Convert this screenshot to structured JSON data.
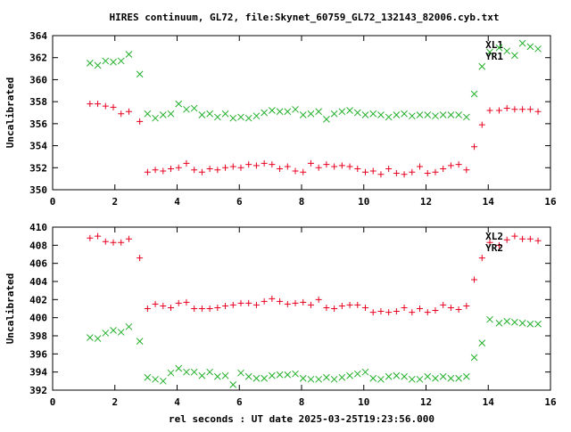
{
  "title": "HIRES continuum, GL72, file:Skynet_60759_GL72_132143_82006.cyb.txt",
  "xlabel": "rel seconds : UT date 2025-03-25T19:23:56.000",
  "colors": {
    "red": "#e8001f",
    "green": "#22b02a",
    "frame": "#000000"
  },
  "chart_data": [
    {
      "type": "scatter",
      "ylabel": "Uncalibrated",
      "xlim": [
        0,
        16
      ],
      "ylim": [
        350,
        364
      ],
      "xticks": [
        "0",
        "2",
        "4",
        "6",
        "8",
        "10",
        "12",
        "14",
        "16"
      ],
      "yticks": [
        "350",
        "352",
        "354",
        "356",
        "358",
        "360",
        "362",
        "364"
      ],
      "legend_position": "top-right",
      "series": [
        {
          "name": "XL1",
          "marker": "plus",
          "color": "#e8001f",
          "x": [
            1.2,
            1.45,
            1.7,
            1.95,
            2.2,
            2.45,
            2.8,
            3.05,
            3.3,
            3.55,
            3.8,
            4.05,
            4.3,
            4.55,
            4.8,
            5.05,
            5.3,
            5.55,
            5.8,
            6.05,
            6.3,
            6.55,
            6.8,
            7.05,
            7.3,
            7.55,
            7.8,
            8.05,
            8.3,
            8.55,
            8.8,
            9.05,
            9.3,
            9.55,
            9.8,
            10.05,
            10.3,
            10.55,
            10.8,
            11.05,
            11.3,
            11.55,
            11.8,
            12.05,
            12.3,
            12.55,
            12.8,
            13.05,
            13.3,
            13.55,
            13.8,
            14.05,
            14.35,
            14.6,
            14.85,
            15.1,
            15.35,
            15.6
          ],
          "y": [
            357.8,
            357.8,
            357.6,
            357.5,
            356.9,
            357.1,
            356.2,
            351.6,
            351.8,
            351.7,
            351.9,
            352.0,
            352.4,
            351.8,
            351.6,
            351.9,
            351.8,
            352.0,
            352.1,
            352.0,
            352.3,
            352.2,
            352.4,
            352.3,
            351.9,
            352.1,
            351.7,
            351.6,
            352.4,
            352.0,
            352.3,
            352.1,
            352.2,
            352.1,
            351.9,
            351.6,
            351.7,
            351.4,
            351.9,
            351.5,
            351.4,
            351.6,
            352.1,
            351.5,
            351.6,
            351.9,
            352.2,
            352.3,
            351.8,
            353.9,
            355.9,
            357.2,
            357.2,
            357.4,
            357.3,
            357.3,
            357.3,
            357.1
          ]
        },
        {
          "name": "YR1",
          "marker": "cross",
          "color": "#22b02a",
          "x": [
            1.2,
            1.45,
            1.7,
            1.95,
            2.2,
            2.45,
            2.8,
            3.05,
            3.3,
            3.55,
            3.8,
            4.05,
            4.3,
            4.55,
            4.8,
            5.05,
            5.3,
            5.55,
            5.8,
            6.05,
            6.3,
            6.55,
            6.8,
            7.05,
            7.3,
            7.55,
            7.8,
            8.05,
            8.3,
            8.55,
            8.8,
            9.05,
            9.3,
            9.55,
            9.8,
            10.05,
            10.3,
            10.55,
            10.8,
            11.05,
            11.3,
            11.55,
            11.8,
            12.05,
            12.3,
            12.55,
            12.8,
            13.05,
            13.3,
            13.55,
            13.8,
            14.05,
            14.35,
            14.6,
            14.85,
            15.1,
            15.35,
            15.6
          ],
          "y": [
            361.5,
            361.3,
            361.7,
            361.6,
            361.7,
            362.3,
            360.5,
            356.9,
            356.5,
            356.8,
            356.9,
            357.8,
            357.3,
            357.4,
            356.8,
            356.9,
            356.6,
            356.9,
            356.5,
            356.6,
            356.5,
            356.7,
            357.0,
            357.2,
            357.1,
            357.1,
            357.3,
            356.8,
            356.9,
            357.1,
            356.4,
            356.9,
            357.1,
            357.2,
            357.0,
            356.8,
            356.9,
            356.8,
            356.6,
            356.8,
            356.9,
            356.7,
            356.8,
            356.8,
            356.7,
            356.8,
            356.8,
            356.8,
            356.6,
            358.7,
            361.2,
            362.5,
            362.9,
            362.6,
            362.2,
            363.3,
            363.0,
            362.8
          ]
        }
      ]
    },
    {
      "type": "scatter",
      "ylabel": "Uncalibrated",
      "xlim": [
        0,
        16
      ],
      "ylim": [
        392,
        410
      ],
      "xticks": [
        "0",
        "2",
        "4",
        "6",
        "8",
        "10",
        "12",
        "14",
        "16"
      ],
      "yticks": [
        "392",
        "394",
        "396",
        "398",
        "400",
        "402",
        "404",
        "406",
        "408",
        "410"
      ],
      "legend_position": "top-right",
      "series": [
        {
          "name": "XL2",
          "marker": "plus",
          "color": "#e8001f",
          "x": [
            1.2,
            1.45,
            1.7,
            1.95,
            2.2,
            2.45,
            2.8,
            3.05,
            3.3,
            3.55,
            3.8,
            4.05,
            4.3,
            4.55,
            4.8,
            5.05,
            5.3,
            5.55,
            5.8,
            6.05,
            6.3,
            6.55,
            6.8,
            7.05,
            7.3,
            7.55,
            7.8,
            8.05,
            8.3,
            8.55,
            8.8,
            9.05,
            9.3,
            9.55,
            9.8,
            10.05,
            10.3,
            10.55,
            10.8,
            11.05,
            11.3,
            11.55,
            11.8,
            12.05,
            12.3,
            12.55,
            12.8,
            13.05,
            13.3,
            13.55,
            13.8,
            14.05,
            14.35,
            14.6,
            14.85,
            15.1,
            15.35,
            15.6
          ],
          "y": [
            408.8,
            409.0,
            408.4,
            408.3,
            408.3,
            408.7,
            406.6,
            401.0,
            401.5,
            401.3,
            401.1,
            401.6,
            401.7,
            401.0,
            401.0,
            401.0,
            401.1,
            401.3,
            401.4,
            401.6,
            401.6,
            401.4,
            401.8,
            402.1,
            401.8,
            401.5,
            401.6,
            401.7,
            401.4,
            402.0,
            401.1,
            401.0,
            401.3,
            401.4,
            401.4,
            401.1,
            400.6,
            400.7,
            400.6,
            400.7,
            401.1,
            400.6,
            401.0,
            400.6,
            400.8,
            401.4,
            401.1,
            400.9,
            401.3,
            404.2,
            406.6,
            408.3,
            408.0,
            408.6,
            409.0,
            408.7,
            408.7,
            408.5
          ]
        },
        {
          "name": "YR2",
          "marker": "cross",
          "color": "#22b02a",
          "x": [
            1.2,
            1.45,
            1.7,
            1.95,
            2.2,
            2.45,
            2.8,
            3.05,
            3.3,
            3.55,
            3.8,
            4.05,
            4.3,
            4.55,
            4.8,
            5.05,
            5.3,
            5.55,
            5.8,
            6.05,
            6.3,
            6.55,
            6.8,
            7.05,
            7.3,
            7.55,
            7.8,
            8.05,
            8.3,
            8.55,
            8.8,
            9.05,
            9.3,
            9.55,
            9.8,
            10.05,
            10.3,
            10.55,
            10.8,
            11.05,
            11.3,
            11.55,
            11.8,
            12.05,
            12.3,
            12.55,
            12.8,
            13.05,
            13.3,
            13.55,
            13.8,
            14.05,
            14.35,
            14.6,
            14.85,
            15.1,
            15.35,
            15.6
          ],
          "y": [
            397.8,
            397.7,
            398.3,
            398.6,
            398.4,
            399.0,
            397.4,
            393.4,
            393.2,
            393.0,
            393.9,
            394.4,
            394.0,
            394.0,
            393.6,
            394.0,
            393.5,
            393.6,
            392.6,
            393.9,
            393.5,
            393.3,
            393.3,
            393.6,
            393.7,
            393.7,
            393.8,
            393.3,
            393.2,
            393.2,
            393.4,
            393.2,
            393.4,
            393.6,
            393.8,
            394.0,
            393.3,
            393.2,
            393.5,
            393.6,
            393.5,
            393.2,
            393.2,
            393.5,
            393.3,
            393.5,
            393.3,
            393.3,
            393.5,
            395.6,
            397.2,
            399.8,
            399.4,
            399.6,
            399.5,
            399.4,
            399.3,
            399.3
          ]
        }
      ]
    }
  ]
}
